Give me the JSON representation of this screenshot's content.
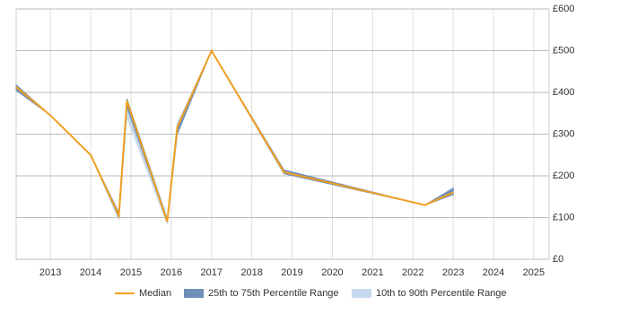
{
  "chart_data": {
    "type": "line",
    "x": [
      2012.15,
      2013,
      2014,
      2014.7,
      2014.9,
      2015.9,
      2016.15,
      2017,
      2018.8,
      2022.3,
      2023
    ],
    "series": [
      {
        "name": "Median",
        "color": "#f0a020",
        "values": [
          413,
          345,
          250,
          105,
          380,
          90,
          316,
          500,
          209,
          130,
          160
        ]
      }
    ],
    "bands": [
      {
        "name": "10th to 90th Percentile Range",
        "color": "#c6d9ec",
        "lower": [
          405,
          345,
          250,
          95,
          340,
          85,
          300,
          500,
          205,
          130,
          155
        ],
        "upper": [
          418,
          345,
          250,
          115,
          385,
          100,
          325,
          500,
          214,
          130,
          172
        ]
      },
      {
        "name": "25th to 75th Percentile Range",
        "color": "#6f8fb8",
        "lower": [
          405,
          345,
          250,
          100,
          365,
          90,
          300,
          500,
          205,
          130,
          155
        ],
        "upper": [
          418,
          345,
          250,
          110,
          385,
          95,
          320,
          500,
          214,
          130,
          170
        ]
      }
    ],
    "xlim": [
      2012.15,
      2025.38
    ],
    "ylim": [
      0,
      600
    ],
    "xticks": [
      2013,
      2014,
      2015,
      2016,
      2017,
      2018,
      2019,
      2020,
      2021,
      2022,
      2023,
      2024,
      2025
    ],
    "yticks": [
      {
        "value": 0,
        "label": "£0"
      },
      {
        "value": 100,
        "label": "£100"
      },
      {
        "value": 200,
        "label": "£200"
      },
      {
        "value": 300,
        "label": "£300"
      },
      {
        "value": 400,
        "label": "£400"
      },
      {
        "value": 500,
        "label": "£500"
      },
      {
        "value": 600,
        "label": "£600"
      }
    ],
    "grid": true
  }
}
